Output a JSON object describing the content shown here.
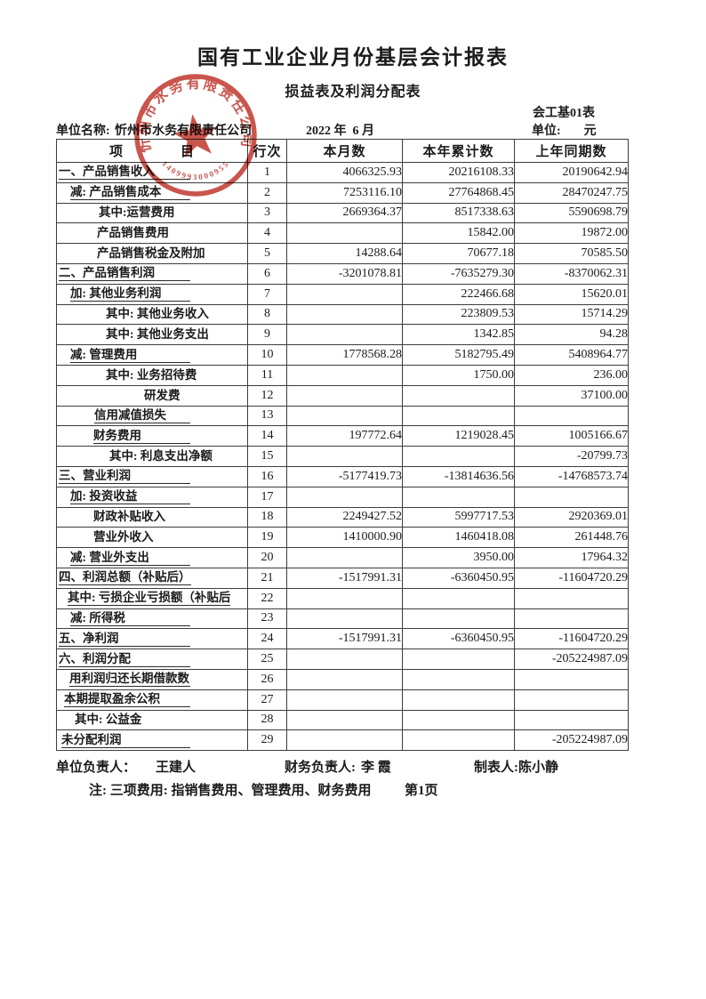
{
  "header": {
    "title": "国有工业企业月份基层会计报表",
    "subtitle": "损益表及利润分配表",
    "form_code": "会工基01表",
    "unit_name_label": "单位名称:",
    "unit_name": "忻州市水务有限责任公司",
    "period": "2022 年  6 月",
    "unit_label": "单位:",
    "unit_value": "元"
  },
  "table": {
    "columns": [
      "项　　　　目",
      "行次",
      "本月数",
      "本年累计数",
      "上年同期数"
    ],
    "rows": [
      {
        "label": "一、产品销售收入",
        "line": "1",
        "month": "4066325.93",
        "ytd": "20216108.33",
        "prev": "20190642.94",
        "indent": 2,
        "underline": true
      },
      {
        "label": "减: 产品销售成本",
        "line": "2",
        "month": "7253116.10",
        "ytd": "27764868.45",
        "prev": "28470247.75",
        "indent": 15,
        "underline": true
      },
      {
        "label": "其中:运营费用",
        "line": "3",
        "month": "2669364.37",
        "ytd": "8517338.63",
        "prev": "5590698.79",
        "indent": 47,
        "underline": false
      },
      {
        "label": "产品销售费用",
        "line": "4",
        "month": "",
        "ytd": "15842.00",
        "prev": "19872.00",
        "indent": 45,
        "underline": false
      },
      {
        "label": "产品销售税金及附加",
        "line": "5",
        "month": "14288.64",
        "ytd": "70677.18",
        "prev": "70585.50",
        "indent": 45,
        "underline": false
      },
      {
        "label": "二、产品销售利润",
        "line": "6",
        "month": "-3201078.81",
        "ytd": "-7635279.30",
        "prev": "-8370062.31",
        "indent": 2,
        "underline": true
      },
      {
        "label": "加: 其他业务利润",
        "line": "7",
        "month": "",
        "ytd": "222466.68",
        "prev": "15620.01",
        "indent": 15,
        "underline": true
      },
      {
        "label": "其中: 其他业务收入",
        "line": "8",
        "month": "",
        "ytd": "223809.53",
        "prev": "15714.29",
        "indent": 55,
        "underline": false
      },
      {
        "label": "其中: 其他业务支出",
        "line": "9",
        "month": "",
        "ytd": "1342.85",
        "prev": "94.28",
        "indent": 55,
        "underline": false
      },
      {
        "label": "减: 管理费用",
        "line": "10",
        "month": "1778568.28",
        "ytd": "5182795.49",
        "prev": "5408964.77",
        "indent": 15,
        "underline": true
      },
      {
        "label": "其中: 业务招待费",
        "line": "11",
        "month": "",
        "ytd": "1750.00",
        "prev": "236.00",
        "indent": 55,
        "underline": false
      },
      {
        "label": "研发费",
        "line": "12",
        "month": "",
        "ytd": "",
        "prev": "37100.00",
        "indent": 98,
        "underline": false
      },
      {
        "label": "信用减值损失",
        "line": "13",
        "month": "",
        "ytd": "",
        "prev": "",
        "indent": 42,
        "underline": true
      },
      {
        "label": "财务费用",
        "line": "14",
        "month": "197772.64",
        "ytd": "1219028.45",
        "prev": "1005166.67",
        "indent": 41,
        "underline": true
      },
      {
        "label": "其中: 利息支出净额",
        "line": "15",
        "month": "",
        "ytd": "",
        "prev": "-20799.73",
        "indent": 59,
        "underline": false
      },
      {
        "label": "三、营业利润",
        "line": "16",
        "month": "-5177419.73",
        "ytd": "-13814636.56",
        "prev": "-14768573.74",
        "indent": 2,
        "underline": true
      },
      {
        "label": "加: 投资收益",
        "line": "17",
        "month": "",
        "ytd": "",
        "prev": "",
        "indent": 15,
        "underline": true
      },
      {
        "label": "财政补贴收入",
        "line": "18",
        "month": "2249427.52",
        "ytd": "5997717.53",
        "prev": "2920369.01",
        "indent": 41,
        "underline": false
      },
      {
        "label": "营业外收入",
        "line": "19",
        "month": "1410000.90",
        "ytd": "1460418.08",
        "prev": "261448.76",
        "indent": 41,
        "underline": false
      },
      {
        "label": "减: 营业外支出",
        "line": "20",
        "month": "",
        "ytd": "3950.00",
        "prev": "17964.32",
        "indent": 15,
        "underline": true
      },
      {
        "label": "四、利润总额（补贴后）",
        "line": "21",
        "month": "-1517991.31",
        "ytd": "-6360450.95",
        "prev": "-11604720.29",
        "indent": 2,
        "underline": true
      },
      {
        "label": "其中: 亏损企业亏损额（补贴后",
        "line": "22",
        "month": "",
        "ytd": "",
        "prev": "",
        "indent": 12,
        "underline": true
      },
      {
        "label": "减: 所得税",
        "line": "23",
        "month": "",
        "ytd": "",
        "prev": "",
        "indent": 15,
        "underline": true
      },
      {
        "label": "五、净利润",
        "line": "24",
        "month": "-1517991.31",
        "ytd": "-6360450.95",
        "prev": "-11604720.29",
        "indent": 2,
        "underline": true
      },
      {
        "label": "六、利润分配",
        "line": "25",
        "month": "",
        "ytd": "",
        "prev": "-205224987.09",
        "indent": 2,
        "underline": true
      },
      {
        "label": "用利润归还长期借款数",
        "line": "26",
        "month": "",
        "ytd": "",
        "prev": "",
        "indent": 14,
        "underline": true
      },
      {
        "label": "本期提取盈余公积",
        "line": "27",
        "month": "",
        "ytd": "",
        "prev": "",
        "indent": 8,
        "underline": true
      },
      {
        "label": "其中: 公益金",
        "line": "28",
        "month": "",
        "ytd": "",
        "prev": "",
        "indent": 20,
        "underline": false
      },
      {
        "label": "未分配利润",
        "line": "29",
        "month": "",
        "ytd": "",
        "prev": "-205224987.09",
        "indent": 5,
        "underline": true
      }
    ]
  },
  "footer": {
    "unit_head_label": "单位负责人：",
    "unit_head": "王建人",
    "finance_head_label": "财务负责人:",
    "finance_head": "李 霞",
    "tabulator_label": "制表人:",
    "tabulator": "陈小静",
    "note": "注: 三项费用: 指销售费用、管理费用、财务费用",
    "page_no": "第1页"
  },
  "stamp": {
    "company": "忻州市水务有限责任公司",
    "serial": "1409993000955",
    "color": "#c0372e"
  }
}
